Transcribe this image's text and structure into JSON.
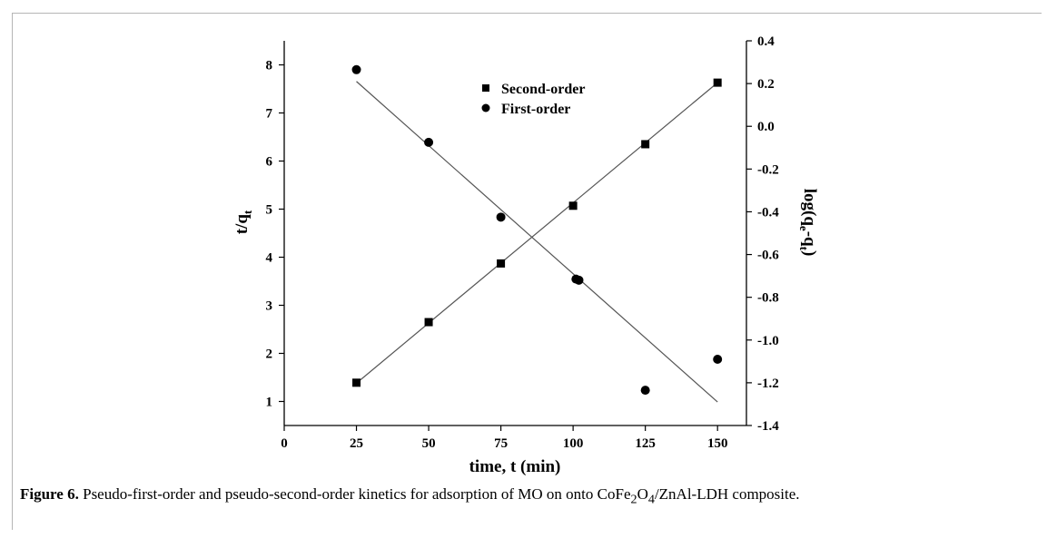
{
  "chart_data": {
    "type": "scatter",
    "xlabel": "time, t (min)",
    "ylabel_left": {
      "base": "t/q",
      "sub": "t"
    },
    "ylabel_right": {
      "pre": "log(q",
      "sub1": "e",
      "mid": "-q",
      "sub2": "t",
      "post": ")"
    },
    "xlim": [
      0,
      160
    ],
    "xticks": [
      0,
      25,
      50,
      75,
      100,
      125,
      150
    ],
    "ylim_left": [
      0.5,
      8.5
    ],
    "yticks_left": [
      1,
      2,
      3,
      4,
      5,
      6,
      7,
      8
    ],
    "ylim_right": [
      -1.4,
      0.4
    ],
    "yticks_right": [
      -1.4,
      -1.2,
      -1.0,
      -0.8,
      -0.6,
      -0.4,
      -0.2,
      0.0,
      0.2,
      0.4
    ],
    "ytick_labels_right": [
      "-1.4",
      "-1.2",
      "-1.0",
      "-0.8",
      "-0.6",
      "-0.4",
      "-0.2",
      "0.0",
      "0.2",
      "0.4"
    ],
    "legend_position": "top-center",
    "series": [
      {
        "name": "Second-order",
        "marker": "square",
        "axis": "left",
        "x": [
          25,
          50,
          75,
          100,
          125,
          150
        ],
        "y": [
          1.39,
          2.65,
          3.87,
          5.07,
          6.35,
          7.63
        ],
        "fit": {
          "x": [
            25,
            150
          ],
          "y": [
            1.38,
            7.63
          ]
        }
      },
      {
        "name": "First-order",
        "marker": "circle",
        "axis": "right",
        "x": [
          25,
          50,
          75,
          101,
          102,
          125,
          150
        ],
        "y": [
          0.265,
          -0.075,
          -0.425,
          -0.715,
          -0.72,
          -1.235,
          -1.09
        ],
        "fit": {
          "x": [
            25,
            150
          ],
          "y": [
            0.21,
            -1.29
          ]
        }
      }
    ],
    "color": "#000000",
    "line_color": "#555555"
  },
  "caption": {
    "label": "Figure 6.",
    "text_before": " Pseudo-first-order and pseudo-second-order kinetics for adsorption of MO on onto CoFe",
    "sub1": "2",
    "mid": "O",
    "sub2": "4",
    "text_after": "/ZnAl-LDH composite."
  }
}
